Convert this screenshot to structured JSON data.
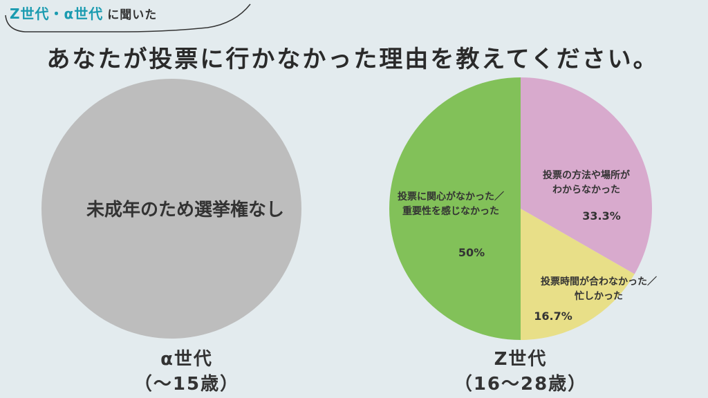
{
  "header": {
    "tag_accent": "Z世代・α世代",
    "tag_rest": "に聞いた",
    "title": "あなたが投票に行かなかった理由を教えてください。"
  },
  "colors": {
    "background": "#e3ebee",
    "accent": "#1a9bb0",
    "gray": "#bdbdbd",
    "green": "#82c159",
    "pink": "#d8aacd",
    "yellow": "#e8df88"
  },
  "chart_data": [
    {
      "type": "pie",
      "group": "α世代",
      "group_sub": "（〜15歳）",
      "center_text": "未成年のため選挙権なし",
      "slices": [
        {
          "label": "未成年のため選挙権なし",
          "value": 100,
          "color": "#bdbdbd"
        }
      ]
    },
    {
      "type": "pie",
      "group": "Z世代",
      "group_sub": "（16〜28歳）",
      "slices": [
        {
          "label_lines": [
            "投票の方法や場所が",
            "わからなかった"
          ],
          "value": 33.3,
          "value_label": "33.3%",
          "color": "#d8aacd"
        },
        {
          "label_lines": [
            "投票時間が合わなかった／",
            "忙しかった"
          ],
          "value": 16.7,
          "value_label": "16.7%",
          "color": "#e8df88"
        },
        {
          "label_lines": [
            "投票に関心がなかった／",
            "重要性を感じなかった"
          ],
          "value": 50,
          "value_label": "50%",
          "color": "#82c159"
        }
      ]
    }
  ]
}
